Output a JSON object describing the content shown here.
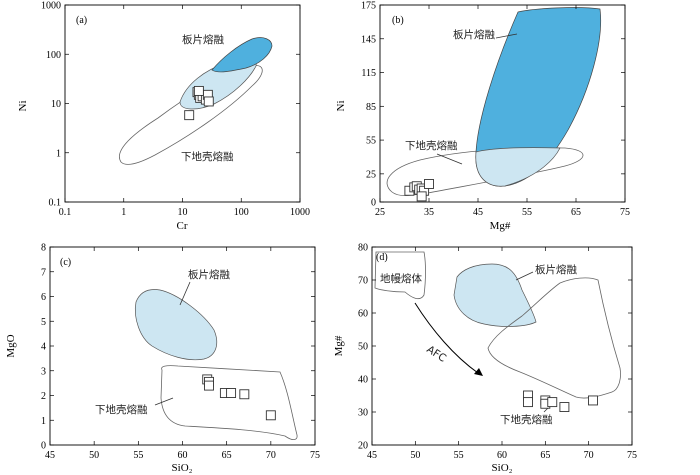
{
  "colors": {
    "slab_dark": "#4fb0de",
    "slab_light": "#cde6f2",
    "outline": "#666666",
    "point_stroke": "#333333"
  },
  "chart_data": [
    {
      "type": "scatter",
      "panel": "(a)",
      "xlabel": "Cr",
      "ylabel": "Ni",
      "xscale": "log",
      "yscale": "log",
      "xlim": [
        0.1,
        1000
      ],
      "ylim": [
        0.1,
        1000
      ],
      "xticks": [
        0.1,
        1,
        10,
        100,
        1000
      ],
      "xtick_labels": [
        "0.1",
        "1",
        "10",
        "100",
        "1000"
      ],
      "yticks": [
        0.1,
        1,
        10,
        100,
        1000
      ],
      "ytick_labels": [
        "0.1",
        "1",
        "10",
        "100",
        "1000"
      ],
      "annotations": [
        "板片熔融",
        "下地壳熔融"
      ],
      "points": [
        {
          "x": 13,
          "y": 5.8
        },
        {
          "x": 18,
          "y": 17
        },
        {
          "x": 19,
          "y": 15
        },
        {
          "x": 20,
          "y": 13
        },
        {
          "x": 22,
          "y": 14
        },
        {
          "x": 25,
          "y": 12
        },
        {
          "x": 27,
          "y": 15
        },
        {
          "x": 28,
          "y": 11
        },
        {
          "x": 19,
          "y": 18
        }
      ]
    },
    {
      "type": "scatter",
      "panel": "(b)",
      "xlabel": "Mg#",
      "ylabel": "Ni",
      "xlim": [
        25,
        75
      ],
      "ylim": [
        0,
        175
      ],
      "xticks": [
        25,
        35,
        45,
        55,
        65,
        75
      ],
      "xtick_labels": [
        "25",
        "35",
        "45",
        "55",
        "65",
        "75"
      ],
      "yticks": [
        0,
        25,
        55,
        85,
        115,
        145,
        175
      ],
      "ytick_labels": [
        "0",
        "25",
        "55",
        "85",
        "115",
        "145",
        "175"
      ],
      "annotations": [
        "板片熔融",
        "下地壳熔融"
      ],
      "points": [
        {
          "x": 31,
          "y": 10
        },
        {
          "x": 32,
          "y": 13
        },
        {
          "x": 32.5,
          "y": 14
        },
        {
          "x": 33,
          "y": 11
        },
        {
          "x": 33.5,
          "y": 12
        },
        {
          "x": 34,
          "y": 10
        },
        {
          "x": 35,
          "y": 16
        },
        {
          "x": 33.5,
          "y": 5
        }
      ]
    },
    {
      "type": "scatter",
      "panel": "(c)",
      "xlabel": "SiO₂",
      "ylabel": "MgO",
      "xlim": [
        45,
        75
      ],
      "ylim": [
        0,
        8
      ],
      "xticks": [
        45,
        50,
        55,
        60,
        65,
        70,
        75
      ],
      "xtick_labels": [
        "45",
        "50",
        "55",
        "60",
        "65",
        "70",
        "75"
      ],
      "yticks": [
        0,
        1,
        2,
        3,
        4,
        5,
        6,
        7,
        8
      ],
      "ytick_labels": [
        "0",
        "1",
        "2",
        "3",
        "4",
        "5",
        "6",
        "7",
        "8"
      ],
      "annotations": [
        "板片熔融",
        "下地壳熔融"
      ],
      "points": [
        {
          "x": 62.8,
          "y": 2.65
        },
        {
          "x": 63,
          "y": 2.55
        },
        {
          "x": 63,
          "y": 2.4
        },
        {
          "x": 64.8,
          "y": 2.1
        },
        {
          "x": 65.5,
          "y": 2.1
        },
        {
          "x": 67,
          "y": 2.05
        },
        {
          "x": 70,
          "y": 1.2
        }
      ]
    },
    {
      "type": "scatter",
      "panel": "(d)",
      "xlabel": "SiO₂",
      "ylabel": "Mg#",
      "xlim": [
        45,
        75
      ],
      "ylim": [
        20,
        80
      ],
      "xticks": [
        45,
        50,
        55,
        60,
        65,
        70,
        75
      ],
      "xtick_labels": [
        "45",
        "50",
        "55",
        "60",
        "65",
        "70",
        "75"
      ],
      "yticks": [
        20,
        30,
        40,
        50,
        60,
        70,
        80
      ],
      "ytick_labels": [
        "20",
        "30",
        "40",
        "50",
        "60",
        "70",
        "80"
      ],
      "annotations": [
        "板片熔融",
        "地幔熔体",
        "AFC",
        "下地壳熔融"
      ],
      "points": [
        {
          "x": 63,
          "y": 35
        },
        {
          "x": 63,
          "y": 33
        },
        {
          "x": 65,
          "y": 33.5
        },
        {
          "x": 65,
          "y": 32.5
        },
        {
          "x": 65.8,
          "y": 33
        },
        {
          "x": 67.2,
          "y": 31.5
        },
        {
          "x": 70.5,
          "y": 33.5
        }
      ]
    }
  ]
}
